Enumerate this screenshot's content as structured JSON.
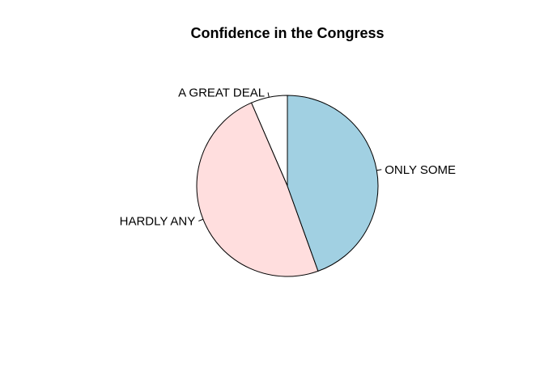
{
  "chart_data": {
    "type": "pie",
    "title": "Confidence in the Congress",
    "start_angle_deg": 90,
    "direction": "counterclockwise",
    "slices": [
      {
        "label": "A GREAT DEAL",
        "value": 6.5,
        "color": "#ffffff"
      },
      {
        "label": "HARDLY ANY",
        "value": 49.0,
        "color": "#ffdede"
      },
      {
        "label": "ONLY SOME",
        "value": 44.5,
        "color": "#a1d0e2"
      }
    ]
  }
}
